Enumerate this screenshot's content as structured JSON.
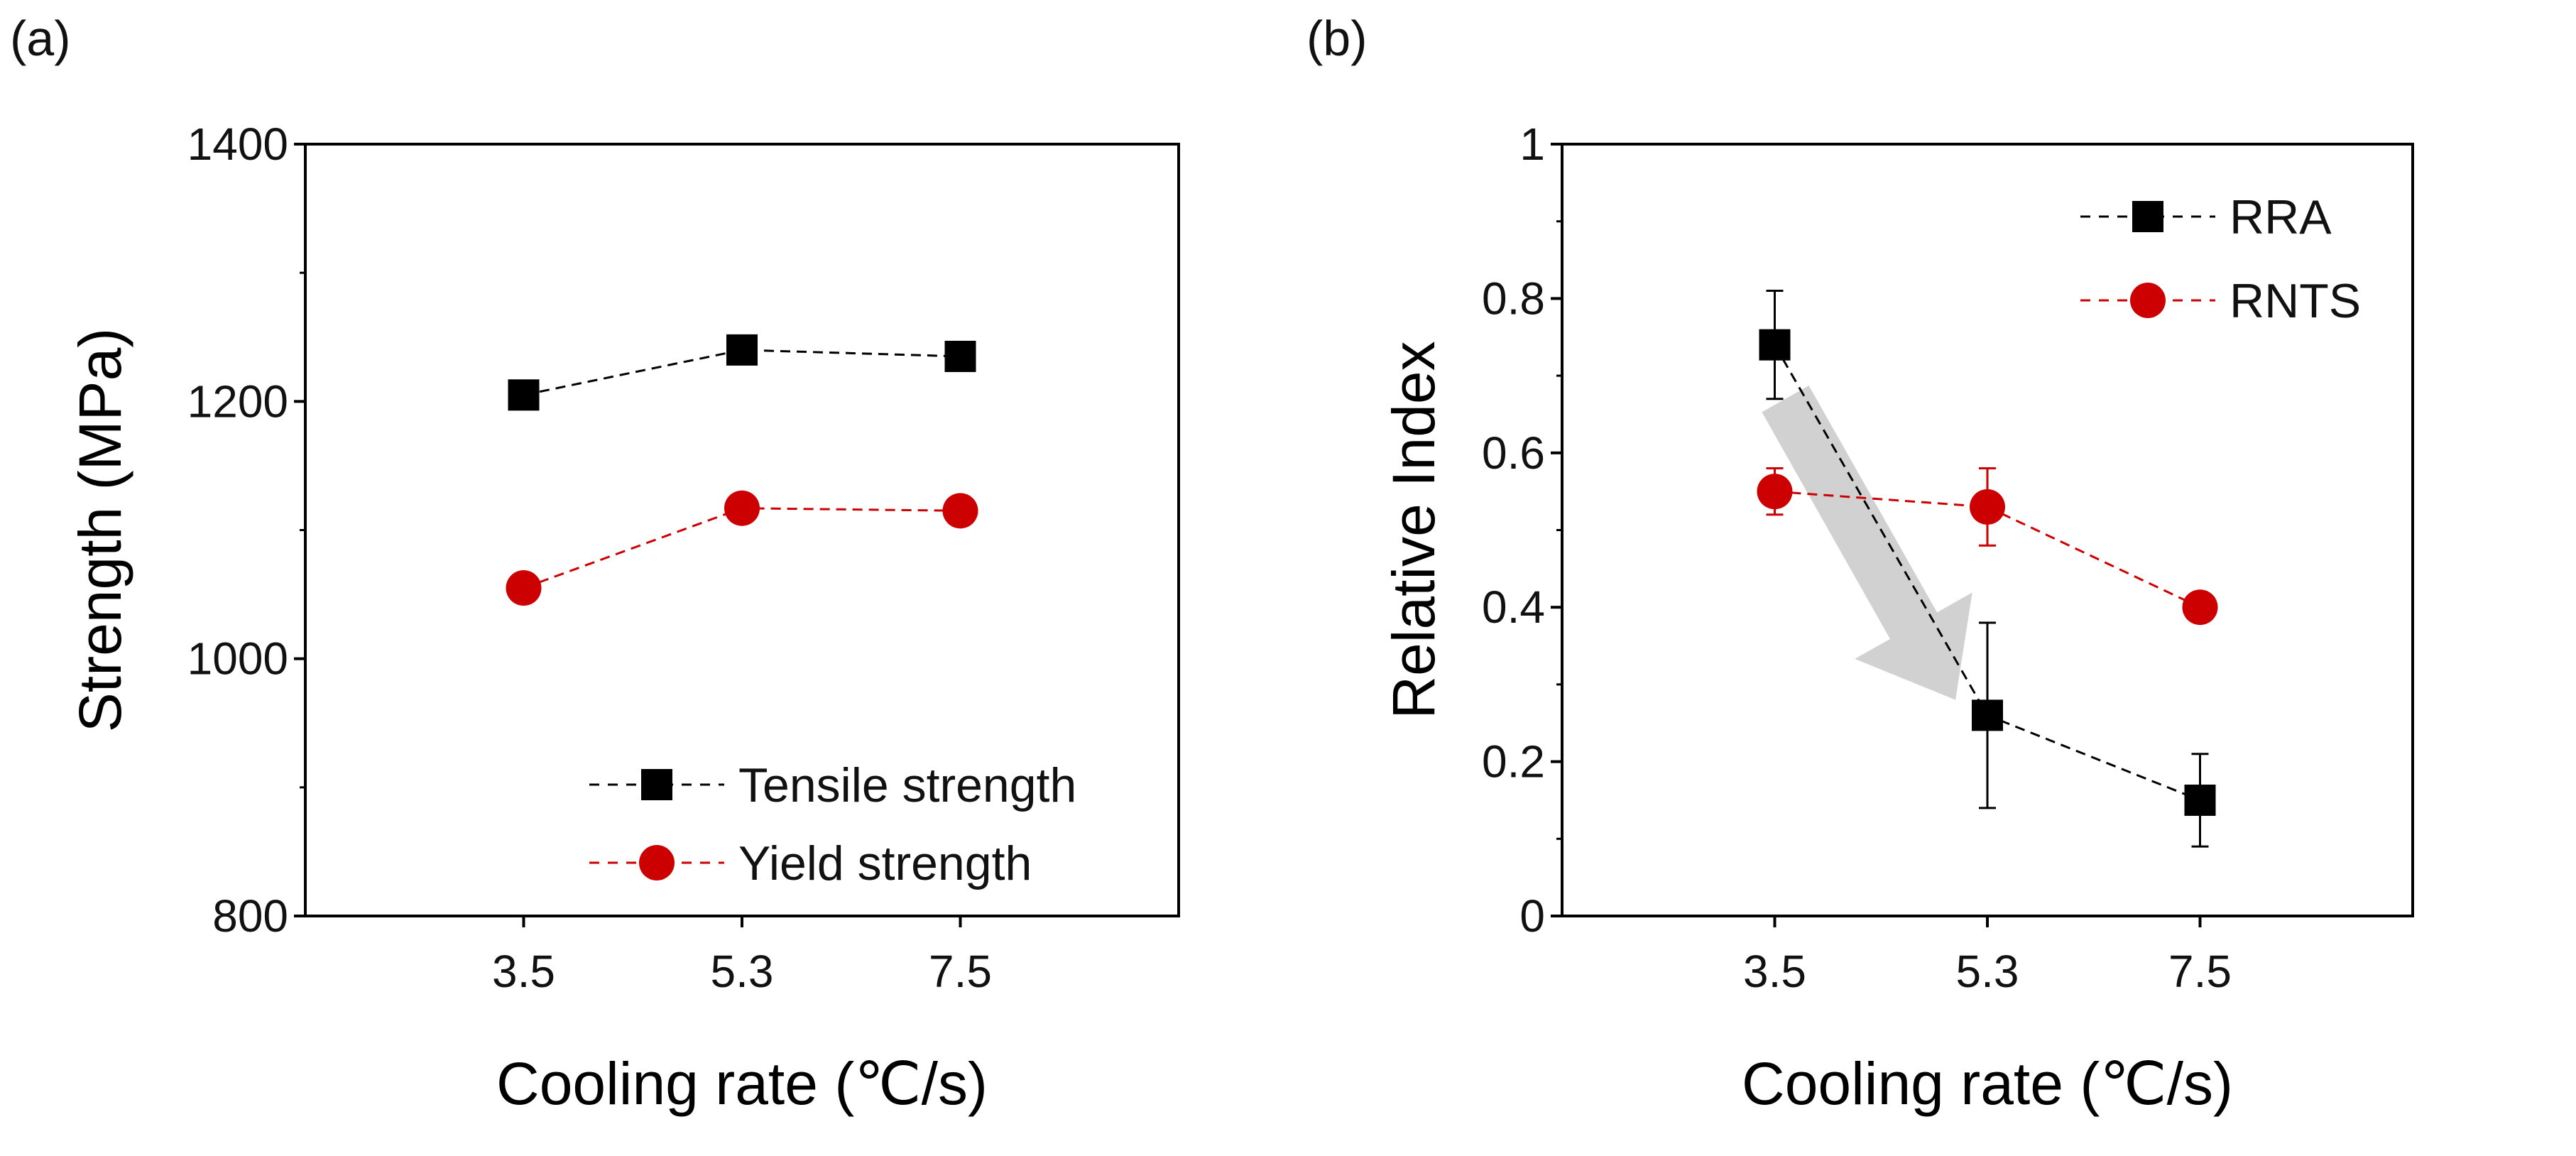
{
  "colors": {
    "black": "#000000",
    "red": "#cc0000",
    "arrow": "#cccccc"
  },
  "chart_data": [
    {
      "panel_label": "(a)",
      "type": "line",
      "categories": [
        "3.5",
        "5.3",
        "7.5"
      ],
      "xlabel": "Cooling rate (℃/s)",
      "ylabel": "Strength (MPa)",
      "ylim": [
        800,
        1400
      ],
      "yticks": [
        800,
        1000,
        1200,
        1400
      ],
      "ytick_labels": [
        "800",
        "1000",
        "1200",
        "1400"
      ],
      "yminor": [
        900,
        1100,
        1300
      ],
      "legend_position": "bottom-right",
      "series": [
        {
          "name": "Tensile strength",
          "marker": "square",
          "color": "#000000",
          "values": [
            1205,
            1240,
            1235
          ]
        },
        {
          "name": "Yield strength",
          "marker": "circle",
          "color": "#cc0000",
          "values": [
            1055,
            1117,
            1115
          ]
        }
      ]
    },
    {
      "panel_label": "(b)",
      "type": "line",
      "categories": [
        "3.5",
        "5.3",
        "7.5"
      ],
      "xlabel": "Cooling rate (℃/s)",
      "ylabel": "Relative Index",
      "ylim": [
        0,
        1
      ],
      "yticks": [
        0,
        0.2,
        0.4,
        0.6,
        0.8,
        1
      ],
      "ytick_labels": [
        "0",
        "0.2",
        "0.4",
        "0.6",
        "0.8",
        "1"
      ],
      "yminor": [
        0.1,
        0.3,
        0.5,
        0.7,
        0.9
      ],
      "legend_position": "top-right",
      "series": [
        {
          "name": "RRA",
          "marker": "square",
          "color": "#000000",
          "values": [
            0.74,
            0.26,
            0.15
          ],
          "errors": [
            0.07,
            0.12,
            0.06
          ]
        },
        {
          "name": "RNTS",
          "marker": "circle",
          "color": "#cc0000",
          "values": [
            0.55,
            0.53,
            0.4
          ],
          "errors": [
            0.03,
            0.05,
            0.0
          ]
        }
      ],
      "annotation": {
        "type": "arrow",
        "from": [
          1.05,
          0.67
        ],
        "to": [
          1.85,
          0.28
        ]
      }
    }
  ]
}
